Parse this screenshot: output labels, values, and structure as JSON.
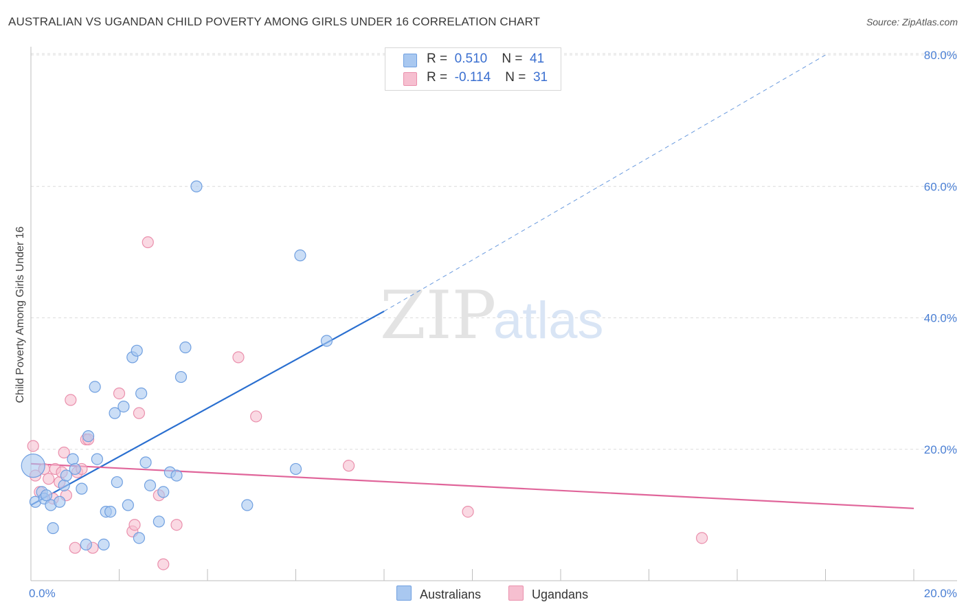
{
  "title": "AUSTRALIAN VS UGANDAN CHILD POVERTY AMONG GIRLS UNDER 16 CORRELATION CHART",
  "source": "Source: ZipAtlas.com",
  "watermark": {
    "zip": "ZIP",
    "atlas": "atlas"
  },
  "legend": {
    "rows": [
      {
        "r_label": "R =",
        "r_value": "0.510",
        "n_label": "N =",
        "n_value": "41"
      },
      {
        "r_label": "R =",
        "r_value": "-0.114",
        "n_label": "N =",
        "n_value": "31"
      }
    ]
  },
  "bottom_legend": {
    "australians": "Australians",
    "ugandans": "Ugandans"
  },
  "colors": {
    "blue_fill": "#a9c8f0",
    "blue_stroke": "#6f9fe0",
    "blue_line": "#2a6fd0",
    "pink_fill": "#f6bfd0",
    "pink_stroke": "#ea8fac",
    "pink_line": "#e0659a",
    "axis_text": "#4a7fd4"
  },
  "chart_data": {
    "type": "scatter",
    "title": "AUSTRALIAN VS UGANDAN CHILD POVERTY AMONG GIRLS UNDER 16 CORRELATION CHART",
    "xlabel": "",
    "ylabel": "Child Poverty Among Girls Under 16",
    "xlim": [
      0,
      20
    ],
    "ylim": [
      0,
      80
    ],
    "x_tick_labels": [
      "0.0%",
      "20.0%"
    ],
    "y_tick_values": [
      20,
      40,
      60,
      80
    ],
    "y_tick_labels": [
      "20.0%",
      "40.0%",
      "60.0%",
      "80.0%"
    ],
    "series": [
      {
        "name": "Australians",
        "r": 0.51,
        "n": 41,
        "trend": {
          "x0": 0,
          "y0": 11.5,
          "x1": 8.0,
          "y1": 41.0,
          "dash_x1": 18.0,
          "dash_y1": 80.0
        },
        "points": [
          {
            "x": 0.05,
            "y": 17.5,
            "big": true
          },
          {
            "x": 0.1,
            "y": 12.0
          },
          {
            "x": 0.25,
            "y": 13.5
          },
          {
            "x": 0.3,
            "y": 12.5
          },
          {
            "x": 0.45,
            "y": 11.5
          },
          {
            "x": 0.5,
            "y": 8.0
          },
          {
            "x": 0.75,
            "y": 14.5
          },
          {
            "x": 0.8,
            "y": 16.0
          },
          {
            "x": 0.95,
            "y": 18.5
          },
          {
            "x": 1.15,
            "y": 14.0
          },
          {
            "x": 1.3,
            "y": 22.0
          },
          {
            "x": 1.45,
            "y": 29.5
          },
          {
            "x": 1.5,
            "y": 18.5
          },
          {
            "x": 1.65,
            "y": 5.5
          },
          {
            "x": 1.7,
            "y": 10.5
          },
          {
            "x": 1.8,
            "y": 10.5
          },
          {
            "x": 1.9,
            "y": 25.5
          },
          {
            "x": 1.95,
            "y": 15.0
          },
          {
            "x": 2.1,
            "y": 26.5
          },
          {
            "x": 2.2,
            "y": 11.5
          },
          {
            "x": 2.3,
            "y": 34.0
          },
          {
            "x": 2.4,
            "y": 35.0
          },
          {
            "x": 2.45,
            "y": 6.5
          },
          {
            "x": 2.5,
            "y": 28.5
          },
          {
            "x": 2.6,
            "y": 18.0
          },
          {
            "x": 2.7,
            "y": 14.5
          },
          {
            "x": 2.9,
            "y": 9.0
          },
          {
            "x": 3.0,
            "y": 13.5
          },
          {
            "x": 3.15,
            "y": 16.5
          },
          {
            "x": 3.3,
            "y": 16.0
          },
          {
            "x": 3.4,
            "y": 31.0
          },
          {
            "x": 3.5,
            "y": 35.5
          },
          {
            "x": 3.75,
            "y": 60.0
          },
          {
            "x": 4.9,
            "y": 11.5
          },
          {
            "x": 6.0,
            "y": 17.0
          },
          {
            "x": 6.1,
            "y": 49.5
          },
          {
            "x": 6.7,
            "y": 36.5
          },
          {
            "x": 1.25,
            "y": 5.5
          },
          {
            "x": 0.65,
            "y": 12.0
          },
          {
            "x": 0.35,
            "y": 13.0
          },
          {
            "x": 1.0,
            "y": 17.0
          }
        ]
      },
      {
        "name": "Ugandans",
        "r": -0.114,
        "n": 31,
        "trend": {
          "x0": 0,
          "y0": 17.8,
          "x1": 20,
          "y1": 11.0
        },
        "points": [
          {
            "x": 0.05,
            "y": 20.5
          },
          {
            "x": 0.1,
            "y": 16.0
          },
          {
            "x": 0.2,
            "y": 13.5
          },
          {
            "x": 0.3,
            "y": 17.0
          },
          {
            "x": 0.4,
            "y": 15.5
          },
          {
            "x": 0.5,
            "y": 12.5
          },
          {
            "x": 0.55,
            "y": 17.0
          },
          {
            "x": 0.65,
            "y": 15.0
          },
          {
            "x": 0.7,
            "y": 16.5
          },
          {
            "x": 0.75,
            "y": 19.5
          },
          {
            "x": 0.8,
            "y": 13.0
          },
          {
            "x": 0.9,
            "y": 27.5
          },
          {
            "x": 1.0,
            "y": 5.0
          },
          {
            "x": 1.05,
            "y": 16.5
          },
          {
            "x": 1.15,
            "y": 17.0
          },
          {
            "x": 1.25,
            "y": 21.5
          },
          {
            "x": 1.3,
            "y": 21.5
          },
          {
            "x": 1.4,
            "y": 5.0
          },
          {
            "x": 2.0,
            "y": 28.5
          },
          {
            "x": 2.3,
            "y": 7.5
          },
          {
            "x": 2.35,
            "y": 8.5
          },
          {
            "x": 2.45,
            "y": 25.5
          },
          {
            "x": 2.65,
            "y": 51.5
          },
          {
            "x": 2.9,
            "y": 13.0
          },
          {
            "x": 3.0,
            "y": 2.5
          },
          {
            "x": 3.3,
            "y": 8.5
          },
          {
            "x": 4.7,
            "y": 34.0
          },
          {
            "x": 5.1,
            "y": 25.0
          },
          {
            "x": 7.2,
            "y": 17.5
          },
          {
            "x": 9.9,
            "y": 10.5
          },
          {
            "x": 15.2,
            "y": 6.5
          }
        ]
      }
    ]
  }
}
